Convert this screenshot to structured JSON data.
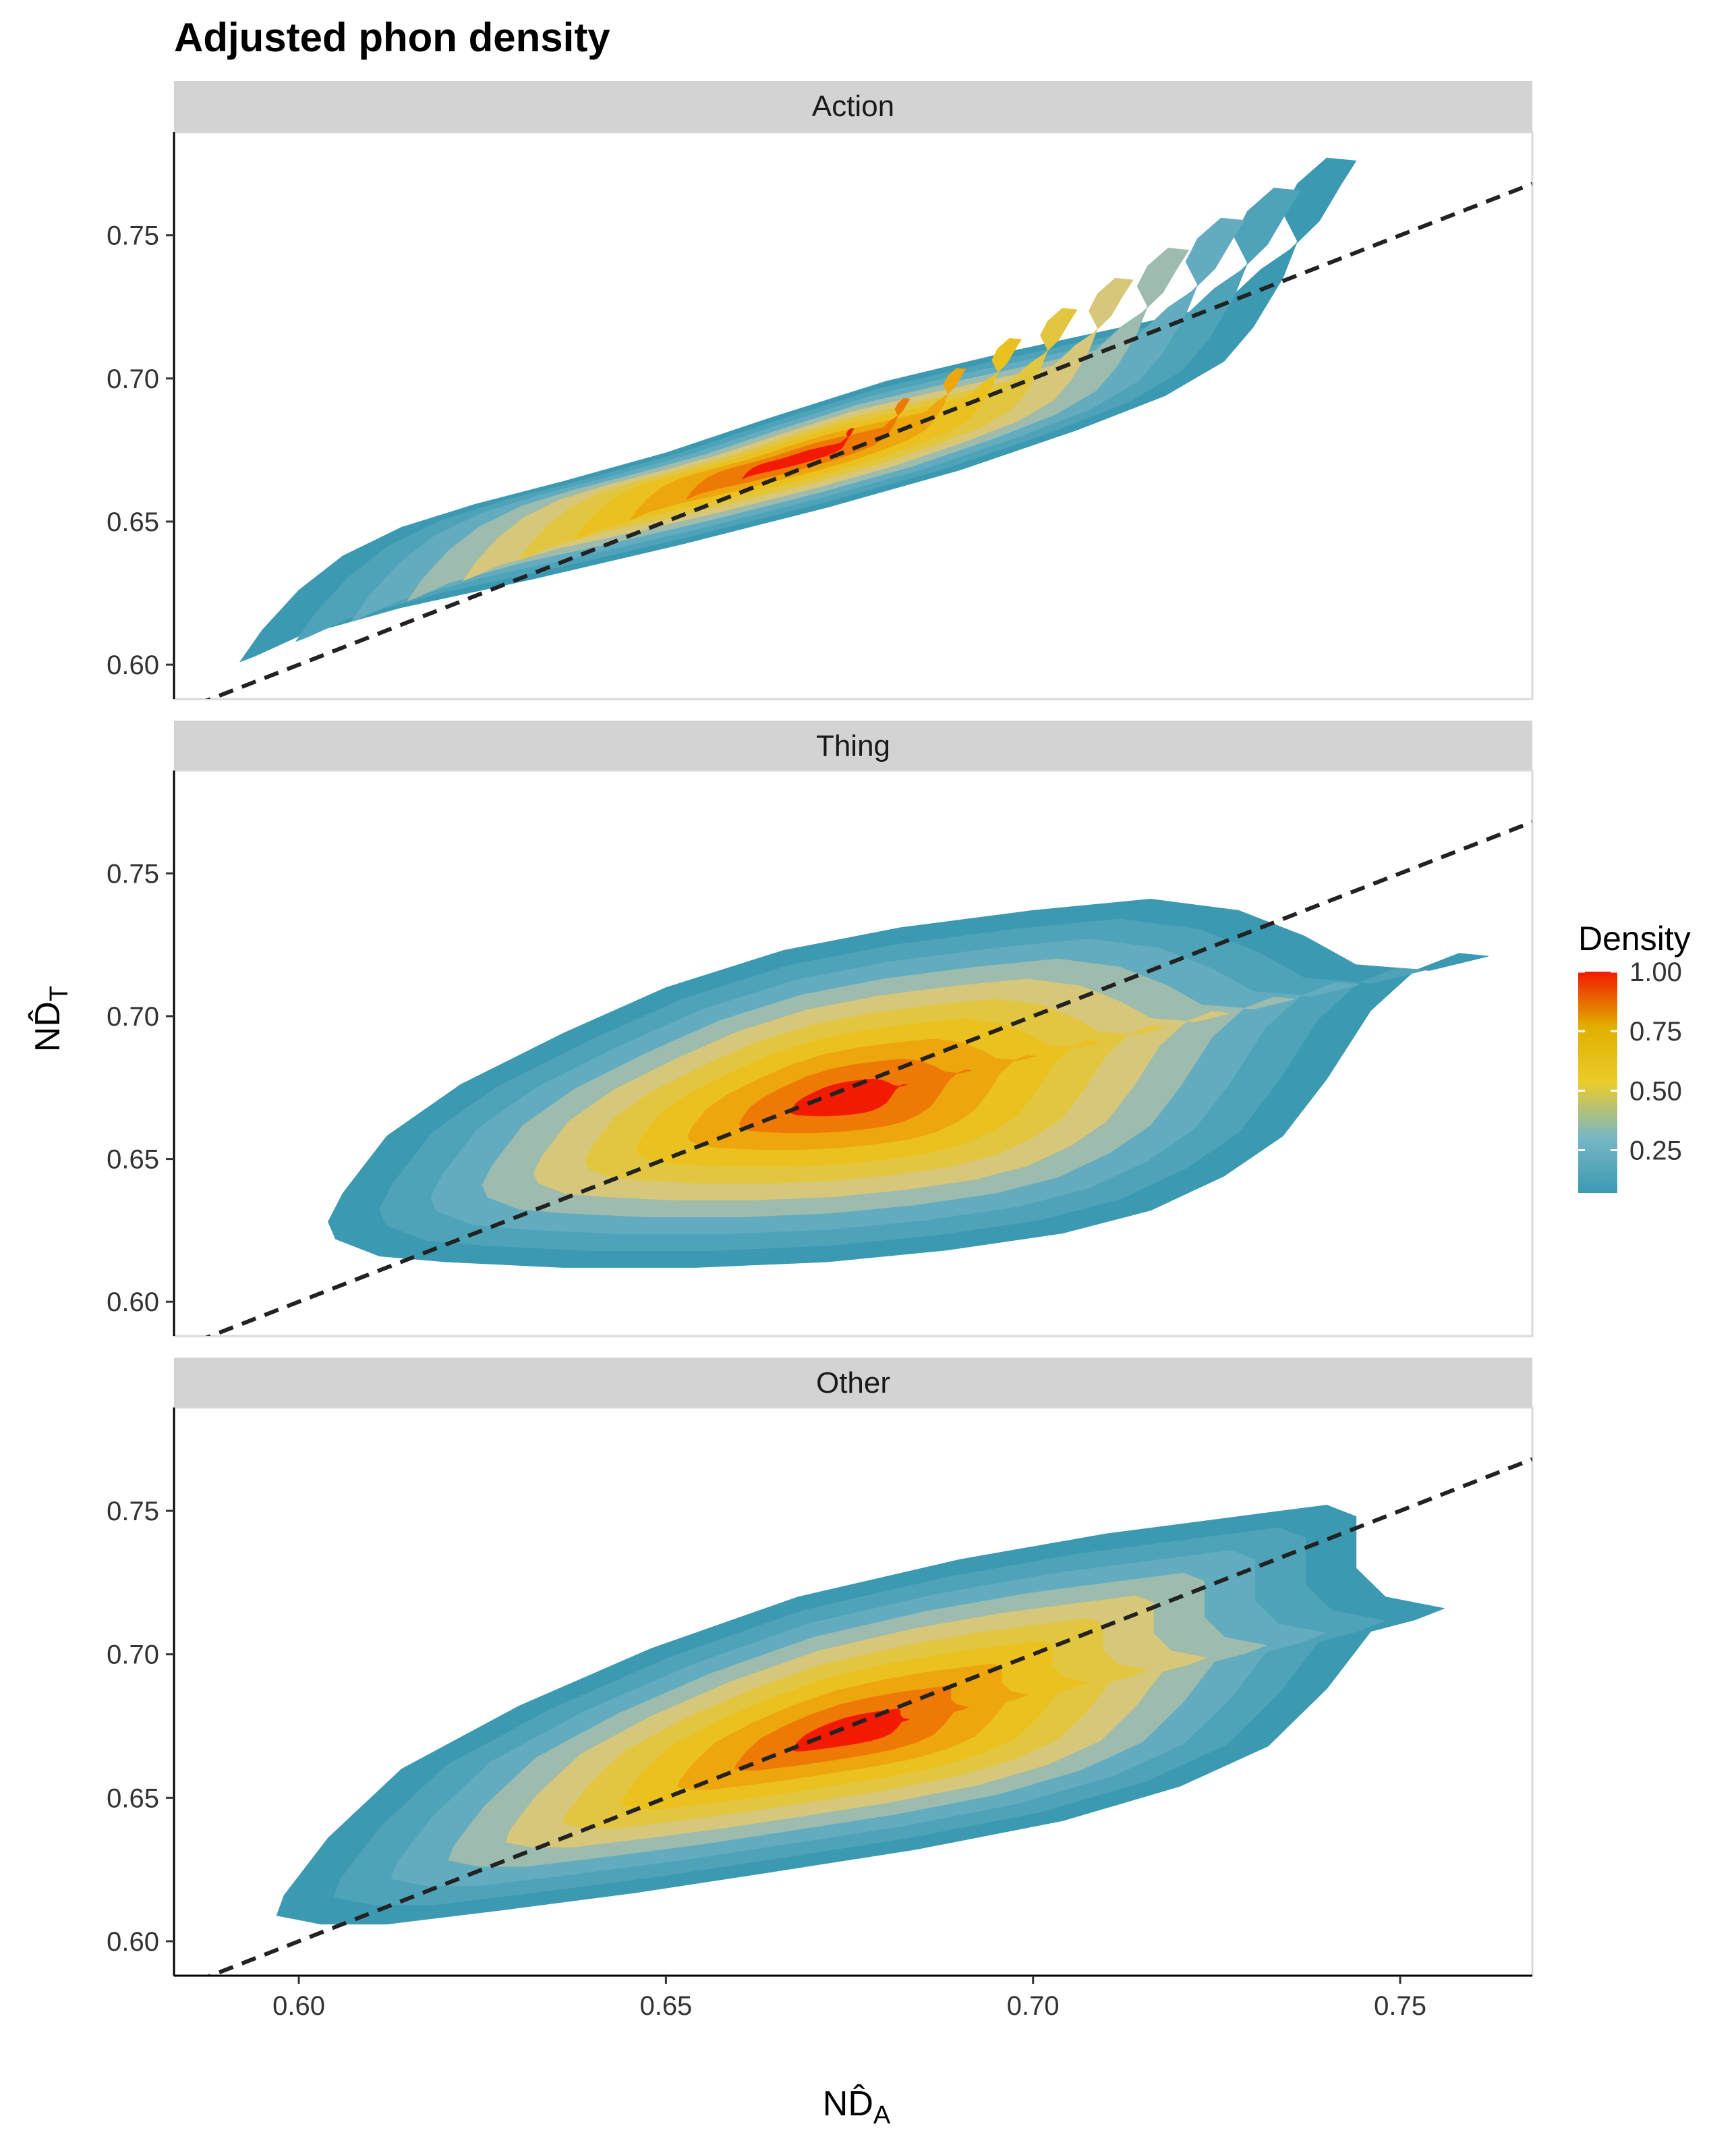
{
  "chart_data": {
    "type": "density_contour",
    "title": "Adjusted phon density",
    "xlabel": "ND̂",
    "xlabel_sub": "A",
    "ylabel": "ND̂",
    "ylabel_sub": "T",
    "xlim": [
      0.583,
      0.768
    ],
    "ylim": [
      0.588,
      0.786
    ],
    "x_ticks": [
      0.6,
      0.65,
      0.7,
      0.75
    ],
    "x_tick_labels": [
      "0.60",
      "0.65",
      "0.70",
      "0.75"
    ],
    "y_ticks": [
      0.6,
      0.65,
      0.7,
      0.75
    ],
    "y_tick_labels": [
      "0.60",
      "0.65",
      "0.70",
      "0.75"
    ],
    "reference_line": {
      "type": "identity",
      "slope": 1,
      "intercept": 0,
      "style": "dashed"
    },
    "grid": false,
    "legend": {
      "title": "Density",
      "placement": "right",
      "ticks": [
        0.25,
        0.5,
        0.75,
        1.0
      ],
      "tick_labels": [
        "0.25",
        "0.50",
        "0.75",
        "1.00"
      ],
      "range": [
        0.07,
        1.0
      ]
    },
    "colors": {
      "low": "#3b9ab2",
      "mid": "#ebcc2a",
      "high": "#f21a00",
      "strip_fill": "#d3d3d3",
      "reference_line": "#222222"
    },
    "panels": [
      {
        "label": "Action",
        "center": [
          0.668,
          0.672
        ],
        "outline": [
          [
            0.592,
            0.601
          ],
          [
            0.595,
            0.612
          ],
          [
            0.6,
            0.626
          ],
          [
            0.606,
            0.638
          ],
          [
            0.614,
            0.648
          ],
          [
            0.624,
            0.656
          ],
          [
            0.636,
            0.664
          ],
          [
            0.65,
            0.674
          ],
          [
            0.664,
            0.686
          ],
          [
            0.68,
            0.699
          ],
          [
            0.698,
            0.71
          ],
          [
            0.716,
            0.72
          ],
          [
            0.726,
            0.726
          ],
          [
            0.731,
            0.738
          ],
          [
            0.735,
            0.745
          ],
          [
            0.739,
            0.755
          ],
          [
            0.742,
            0.768
          ],
          [
            0.744,
            0.776
          ],
          [
            0.74,
            0.777
          ],
          [
            0.736,
            0.768
          ],
          [
            0.734,
            0.758
          ],
          [
            0.736,
            0.748
          ],
          [
            0.734,
            0.735
          ],
          [
            0.73,
            0.718
          ],
          [
            0.726,
            0.706
          ],
          [
            0.718,
            0.694
          ],
          [
            0.706,
            0.682
          ],
          [
            0.69,
            0.668
          ],
          [
            0.672,
            0.655
          ],
          [
            0.652,
            0.642
          ],
          [
            0.632,
            0.63
          ],
          [
            0.614,
            0.62
          ],
          [
            0.6,
            0.61
          ],
          [
            0.594,
            0.603
          ]
        ],
        "levels": [
          {
            "level": 0.1,
            "color": "#3b9ab2"
          },
          {
            "level": 0.2,
            "color": "#4ea3b9"
          },
          {
            "level": 0.3,
            "color": "#63acbf"
          },
          {
            "level": 0.4,
            "color": "#9dbcae"
          },
          {
            "level": 0.5,
            "color": "#d7c77a"
          },
          {
            "level": 0.6,
            "color": "#e3c640"
          },
          {
            "level": 0.7,
            "color": "#ebc11f"
          },
          {
            "level": 0.8,
            "color": "#eda60c"
          },
          {
            "level": 0.9,
            "color": "#ee7a05"
          },
          {
            "level": 1.0,
            "color": "#f21a00"
          }
        ]
      },
      {
        "label": "Thing",
        "center": [
          0.674,
          0.671
        ],
        "outline": [
          [
            0.605,
            0.622
          ],
          [
            0.611,
            0.616
          ],
          [
            0.62,
            0.614
          ],
          [
            0.636,
            0.612
          ],
          [
            0.654,
            0.612
          ],
          [
            0.672,
            0.614
          ],
          [
            0.688,
            0.618
          ],
          [
            0.704,
            0.624
          ],
          [
            0.716,
            0.632
          ],
          [
            0.726,
            0.644
          ],
          [
            0.734,
            0.658
          ],
          [
            0.74,
            0.678
          ],
          [
            0.746,
            0.702
          ],
          [
            0.752,
            0.716
          ],
          [
            0.758,
            0.722
          ],
          [
            0.762,
            0.721
          ],
          [
            0.754,
            0.716
          ],
          [
            0.744,
            0.718
          ],
          [
            0.737,
            0.728
          ],
          [
            0.728,
            0.737
          ],
          [
            0.716,
            0.741
          ],
          [
            0.7,
            0.737
          ],
          [
            0.682,
            0.731
          ],
          [
            0.666,
            0.723
          ],
          [
            0.65,
            0.71
          ],
          [
            0.636,
            0.694
          ],
          [
            0.622,
            0.676
          ],
          [
            0.612,
            0.658
          ],
          [
            0.606,
            0.638
          ],
          [
            0.604,
            0.628
          ]
        ],
        "levels": [
          {
            "level": 0.1,
            "color": "#3b9ab2"
          },
          {
            "level": 0.2,
            "color": "#4ea3b9"
          },
          {
            "level": 0.3,
            "color": "#63acbf"
          },
          {
            "level": 0.4,
            "color": "#9dbcae"
          },
          {
            "level": 0.5,
            "color": "#d7c77a"
          },
          {
            "level": 0.6,
            "color": "#e3c640"
          },
          {
            "level": 0.7,
            "color": "#ebc11f"
          },
          {
            "level": 0.8,
            "color": "#eda60c"
          },
          {
            "level": 0.9,
            "color": "#ee7a05"
          },
          {
            "level": 1.0,
            "color": "#f21a00"
          }
        ]
      },
      {
        "label": "Other",
        "center": [
          0.675,
          0.673
        ],
        "outline": [
          [
            0.597,
            0.609
          ],
          [
            0.603,
            0.606
          ],
          [
            0.612,
            0.606
          ],
          [
            0.628,
            0.611
          ],
          [
            0.646,
            0.617
          ],
          [
            0.664,
            0.624
          ],
          [
            0.684,
            0.632
          ],
          [
            0.704,
            0.642
          ],
          [
            0.72,
            0.654
          ],
          [
            0.732,
            0.668
          ],
          [
            0.74,
            0.688
          ],
          [
            0.746,
            0.708
          ],
          [
            0.752,
            0.712
          ],
          [
            0.756,
            0.716
          ],
          [
            0.748,
            0.72
          ],
          [
            0.744,
            0.73
          ],
          [
            0.744,
            0.748
          ],
          [
            0.74,
            0.752
          ],
          [
            0.728,
            0.748
          ],
          [
            0.71,
            0.742
          ],
          [
            0.69,
            0.733
          ],
          [
            0.668,
            0.72
          ],
          [
            0.648,
            0.702
          ],
          [
            0.63,
            0.682
          ],
          [
            0.614,
            0.66
          ],
          [
            0.604,
            0.636
          ],
          [
            0.598,
            0.616
          ]
        ],
        "levels": [
          {
            "level": 0.1,
            "color": "#3b9ab2"
          },
          {
            "level": 0.2,
            "color": "#4ea3b9"
          },
          {
            "level": 0.3,
            "color": "#63acbf"
          },
          {
            "level": 0.4,
            "color": "#9dbcae"
          },
          {
            "level": 0.5,
            "color": "#d7c77a"
          },
          {
            "level": 0.6,
            "color": "#e3c640"
          },
          {
            "level": 0.7,
            "color": "#ebc11f"
          },
          {
            "level": 0.8,
            "color": "#eda60c"
          },
          {
            "level": 0.9,
            "color": "#ee7a05"
          },
          {
            "level": 1.0,
            "color": "#f21a00"
          }
        ]
      }
    ]
  }
}
